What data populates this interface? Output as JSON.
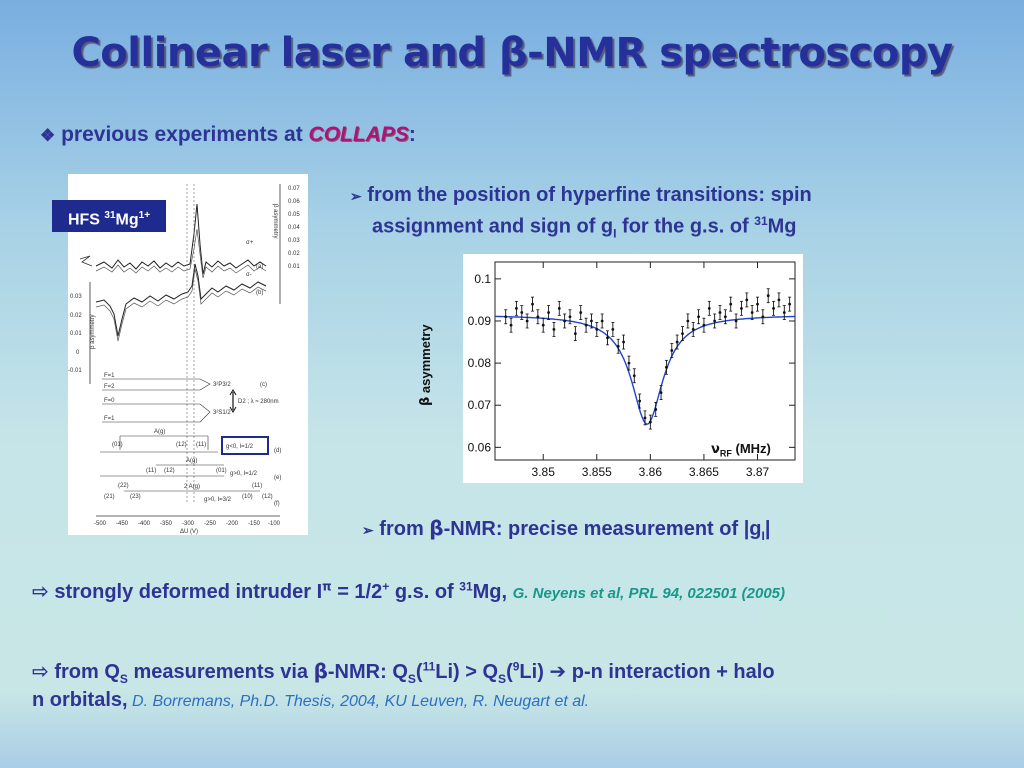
{
  "title": {
    "prefix": "Collinear laser and ",
    "beta": "β",
    "suffix": "-NMR spectroscopy"
  },
  "line1": {
    "bullet": "❖",
    "text": "previous experiments at ",
    "collaps": "COLLAPS",
    "colon": ":"
  },
  "hfs_label": {
    "text": "HFS ",
    "sup": "31",
    "el": "Mg",
    "charge": "1+"
  },
  "bullet_a": {
    "arrow": "➢",
    "t1": "from the position of hyperfine transitions: spin",
    "t2": "assignment and sign of g",
    "sub": "I",
    "t3": " for the g.s. of ",
    "sup": "31",
    "el": "Mg"
  },
  "bullet_b": {
    "arrow": "➢",
    "t1": "from ",
    "beta": "β",
    "t2": "-NMR: precise measurement of |g",
    "sub": "I",
    "t3": "|"
  },
  "nmr_chart": {
    "ylabel_beta": "β",
    "ylabel": "asymmetry",
    "xunit_nu": "ν",
    "xunit_sub": "RF",
    "xunit": "(MHz)"
  },
  "line3": {
    "arrow": "⇨",
    "t1": "strongly deformed intruder I",
    "sup": "π",
    "t2": " = 1/2",
    "sup2": "+",
    "t3": " g.s. of ",
    "sup3": "31",
    "t4": "Mg, ",
    "ref": "G. Neyens et al, PRL 94, 022501 (2005)"
  },
  "line4": {
    "arrow": "⇨",
    "t1": " from Q",
    "sub1": "S",
    "t2": " measurements via ",
    "beta": "β",
    "t3": "-NMR: Q",
    "sub2": "S",
    "t4": "(",
    "sup1": "11",
    "t5": "Li) > Q",
    "sub3": "S",
    "t6": "(",
    "sup2": "9",
    "t7": "Li) ",
    "arrow2": "➔",
    "t8": " p-n interaction + halo"
  },
  "line5": {
    "t1": "n orbitals,",
    "ref": " D. Borremans, Ph.D. Thesis, 2004, KU Leuven, R. Neugart et al."
  },
  "hfs_figure": {
    "yticks": [
      "0.03",
      "0.02",
      "0.01",
      "0",
      "-0.01"
    ],
    "ylabel": "β asymmetry",
    "right_ticks": [
      "0.07",
      "0.06",
      "0.05",
      "0.04",
      "0.03",
      "0.02",
      "0.01"
    ],
    "right_label": "β asymmetry",
    "xticks": [
      "-500",
      "-450",
      "-400",
      "-350",
      "-300",
      "-250",
      "-200",
      "-150",
      "-100"
    ],
    "xlabel": "ΔU (V)",
    "sigma_plus": "σ+",
    "sigma_minus": "σ-",
    "tag_a": "(a)",
    "tag_b": "(b)",
    "tag_c": "(c)",
    "tag_d": "(d)",
    "tag_e": "(e)",
    "tag_f": "(f)",
    "levels": [
      "F=1",
      "F=2",
      "F=0",
      "F=1"
    ],
    "term_p": "3²P3/2",
    "term_s": "3²S1/2",
    "d2": "D2 ; λ ≈ 280nm",
    "box_text": "g<0, I=1/2",
    "text_e": "g>0, I=1/2",
    "text_f": "g>0, I=3/2",
    "ag": "A(g)",
    "ag2": "A(g)",
    "two_ag": "2 A(g)",
    "d_left": "(01)",
    "d_mid1": "(12)",
    "d_mid2": "(11)",
    "e_left1": "(11)",
    "e_left2": "(12)",
    "e_right": "(01)",
    "f_l1": "(22)",
    "f_l2": "(21)",
    "f_l3": "(23)",
    "f_r1": "(11)",
    "f_r2": "(10)",
    "f_r3": "(12)"
  },
  "chart_data": {
    "type": "scatter",
    "x": [
      3.8465,
      3.847,
      3.8475,
      3.848,
      3.8485,
      3.849,
      3.8495,
      3.85,
      3.8505,
      3.851,
      3.8515,
      3.852,
      3.8525,
      3.853,
      3.8535,
      3.854,
      3.8545,
      3.855,
      3.8555,
      3.856,
      3.8565,
      3.857,
      3.8575,
      3.858,
      3.8585,
      3.859,
      3.8595,
      3.86,
      3.8605,
      3.861,
      3.8615,
      3.862,
      3.8625,
      3.863,
      3.8635,
      3.864,
      3.8645,
      3.865,
      3.8655,
      3.866,
      3.8665,
      3.867,
      3.8675,
      3.868,
      3.8685,
      3.869,
      3.8695,
      3.87,
      3.8705,
      3.871,
      3.8715,
      3.872,
      3.8725,
      3.873
    ],
    "y": [
      0.091,
      0.089,
      0.093,
      0.092,
      0.09,
      0.094,
      0.091,
      0.089,
      0.092,
      0.088,
      0.093,
      0.09,
      0.091,
      0.087,
      0.092,
      0.089,
      0.09,
      0.088,
      0.09,
      0.086,
      0.088,
      0.084,
      0.085,
      0.08,
      0.077,
      0.071,
      0.067,
      0.066,
      0.069,
      0.073,
      0.079,
      0.083,
      0.085,
      0.087,
      0.09,
      0.088,
      0.091,
      0.089,
      0.093,
      0.09,
      0.092,
      0.091,
      0.094,
      0.09,
      0.093,
      0.095,
      0.092,
      0.094,
      0.091,
      0.096,
      0.093,
      0.095,
      0.092,
      0.094
    ],
    "fit": {
      "center": 3.8597,
      "baseline": 0.0915,
      "depth": 0.026,
      "width": 0.0018
    },
    "xticks": [
      3.85,
      3.855,
      3.86,
      3.865,
      3.87
    ],
    "xtick_labels": [
      "3.85",
      "3.855",
      "3.86",
      "3.865",
      "3.87"
    ],
    "yticks": [
      0.06,
      0.07,
      0.08,
      0.09,
      0.1
    ],
    "ytick_labels": [
      "0.06",
      "0.07",
      "0.08",
      "0.09",
      "0.1"
    ],
    "xlim": [
      3.8455,
      3.8735
    ],
    "ylim": [
      0.057,
      0.104
    ],
    "xlabel": "νRF (MHz)",
    "ylabel": "β asymmetry",
    "colors": {
      "points": "#111111",
      "fit": "#2244cc"
    }
  }
}
